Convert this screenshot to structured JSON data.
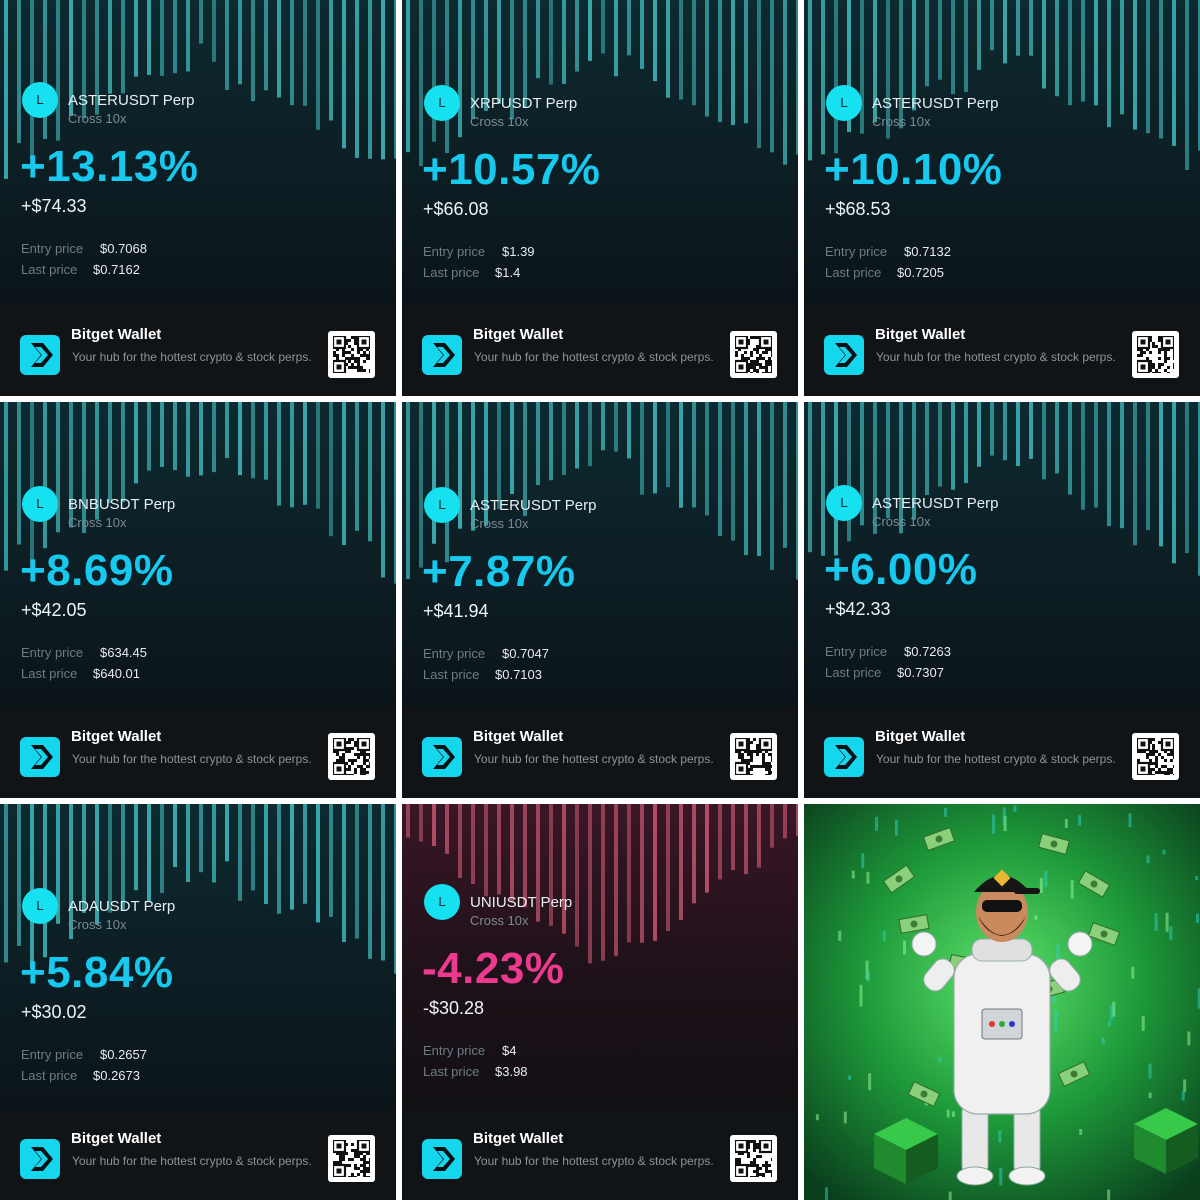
{
  "colors": {
    "gain": "#17c9ef",
    "loss": "#ec3b8f",
    "accent": "#14d6ec",
    "card_bg": "#0b1318",
    "footer_bg": "#111417"
  },
  "entry_label": "Entry price",
  "last_label": "Last price",
  "brand": "Bitget Wallet",
  "tagline": "Your hub for the hottest crypto & stock perps.",
  "icons": {
    "avatar": "avatar-l",
    "brand": "bitget-wallet-logo-icon",
    "qr": "qr-code-icon",
    "art": "astronaut-money-illustration"
  },
  "cards": [
    {
      "avatar_letter": "L",
      "pair": "ASTERUSDT Perp",
      "margin": "Cross 10x",
      "pct": "+13.13%",
      "pnl": "+$74.33",
      "entry": "$0.7068",
      "last": "$0.7162",
      "theme": "gain"
    },
    {
      "avatar_letter": "L",
      "pair": "XRPUSDT Perp",
      "margin": "Cross 10x",
      "pct": "+10.57%",
      "pnl": "+$66.08",
      "entry": "$1.39",
      "last": "$1.4",
      "theme": "gain"
    },
    {
      "avatar_letter": "L",
      "pair": "ASTERUSDT Perp",
      "margin": "Cross 10x",
      "pct": "+10.10%",
      "pnl": "+$68.53",
      "entry": "$0.7132",
      "last": "$0.7205",
      "theme": "gain"
    },
    {
      "avatar_letter": "L",
      "pair": "BNBUSDT Perp",
      "margin": "Cross 10x",
      "pct": "+8.69%",
      "pnl": "+$42.05",
      "entry": "$634.45",
      "last": "$640.01",
      "theme": "gain"
    },
    {
      "avatar_letter": "L",
      "pair": "ASTERUSDT Perp",
      "margin": "Cross 10x",
      "pct": "+7.87%",
      "pnl": "+$41.94",
      "entry": "$0.7047",
      "last": "$0.7103",
      "theme": "gain"
    },
    {
      "avatar_letter": "L",
      "pair": "ASTERUSDT Perp",
      "margin": "Cross 10x",
      "pct": "+6.00%",
      "pnl": "+$42.33",
      "entry": "$0.7263",
      "last": "$0.7307",
      "theme": "gain"
    },
    {
      "avatar_letter": "L",
      "pair": "ADAUSDT Perp",
      "margin": "Cross 10x",
      "pct": "+5.84%",
      "pnl": "+$30.02",
      "entry": "$0.2657",
      "last": "$0.2673",
      "theme": "gain"
    },
    {
      "avatar_letter": "L",
      "pair": "UNIUSDT Perp",
      "margin": "Cross 10x",
      "pct": "-4.23%",
      "pnl": "-$30.28",
      "entry": "$4",
      "last": "$3.98",
      "theme": "loss"
    }
  ]
}
